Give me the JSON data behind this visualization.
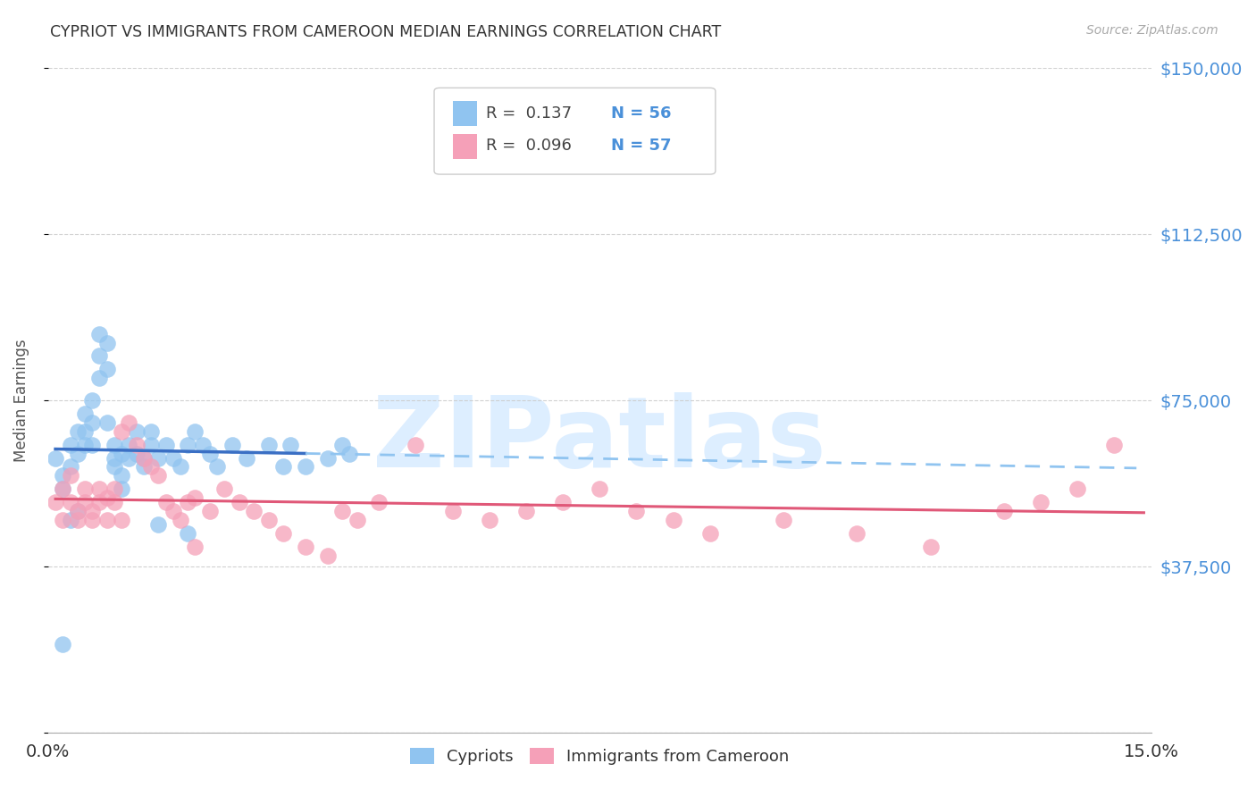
{
  "title": "CYPRIOT VS IMMIGRANTS FROM CAMEROON MEDIAN EARNINGS CORRELATION CHART",
  "source": "Source: ZipAtlas.com",
  "ylabel": "Median Earnings",
  "xlim": [
    0.0,
    0.15
  ],
  "ylim": [
    0,
    150000
  ],
  "yticks": [
    0,
    37500,
    75000,
    112500,
    150000
  ],
  "xticks": [
    0.0,
    0.05,
    0.1,
    0.15
  ],
  "xtick_labels": [
    "0.0%",
    "",
    "",
    "15.0%"
  ],
  "ytick_labels_right": [
    "$37,500",
    "$75,000",
    "$112,500",
    "$150,000"
  ],
  "legend_label1": "Cypriots",
  "legend_label2": "Immigrants from Cameroon",
  "R1": 0.137,
  "N1": 56,
  "R2": 0.096,
  "N2": 57,
  "color_blue": "#90c4f0",
  "color_pink": "#f5a0b8",
  "line_blue_solid": "#3a6fc4",
  "line_blue_dashed": "#90c4f0",
  "line_pink": "#e05878",
  "watermark": "ZIPatlas",
  "watermark_color": "#ddeeff",
  "title_color": "#333333",
  "axis_label_color": "#555555",
  "tick_color_blue": "#4a90d9",
  "background_color": "#ffffff",
  "grid_color": "#cccccc",
  "blue_x": [
    0.001,
    0.002,
    0.002,
    0.003,
    0.003,
    0.004,
    0.004,
    0.005,
    0.005,
    0.005,
    0.006,
    0.006,
    0.006,
    0.007,
    0.007,
    0.007,
    0.008,
    0.008,
    0.008,
    0.009,
    0.009,
    0.009,
    0.01,
    0.01,
    0.01,
    0.011,
    0.011,
    0.012,
    0.012,
    0.013,
    0.013,
    0.014,
    0.014,
    0.015,
    0.016,
    0.017,
    0.018,
    0.019,
    0.02,
    0.021,
    0.022,
    0.023,
    0.025,
    0.027,
    0.03,
    0.032,
    0.033,
    0.035,
    0.038,
    0.04,
    0.041,
    0.003,
    0.004,
    0.002,
    0.015,
    0.019
  ],
  "blue_y": [
    62000,
    58000,
    55000,
    65000,
    60000,
    68000,
    63000,
    72000,
    68000,
    65000,
    75000,
    70000,
    65000,
    85000,
    80000,
    90000,
    88000,
    82000,
    70000,
    65000,
    62000,
    60000,
    63000,
    58000,
    55000,
    62000,
    65000,
    68000,
    63000,
    62000,
    60000,
    65000,
    68000,
    62000,
    65000,
    62000,
    60000,
    65000,
    68000,
    65000,
    63000,
    60000,
    65000,
    62000,
    65000,
    60000,
    65000,
    60000,
    62000,
    65000,
    63000,
    48000,
    50000,
    20000,
    47000,
    45000
  ],
  "pink_x": [
    0.001,
    0.002,
    0.002,
    0.003,
    0.003,
    0.004,
    0.004,
    0.005,
    0.005,
    0.006,
    0.006,
    0.007,
    0.007,
    0.008,
    0.008,
    0.009,
    0.009,
    0.01,
    0.011,
    0.012,
    0.013,
    0.014,
    0.015,
    0.016,
    0.017,
    0.018,
    0.019,
    0.02,
    0.022,
    0.024,
    0.026,
    0.028,
    0.03,
    0.032,
    0.035,
    0.038,
    0.04,
    0.042,
    0.045,
    0.05,
    0.055,
    0.06,
    0.065,
    0.07,
    0.075,
    0.08,
    0.085,
    0.09,
    0.1,
    0.11,
    0.12,
    0.13,
    0.135,
    0.14,
    0.145,
    0.01,
    0.02
  ],
  "pink_y": [
    52000,
    55000,
    48000,
    52000,
    58000,
    50000,
    48000,
    52000,
    55000,
    50000,
    48000,
    52000,
    55000,
    53000,
    48000,
    52000,
    55000,
    68000,
    70000,
    65000,
    62000,
    60000,
    58000,
    52000,
    50000,
    48000,
    52000,
    53000,
    50000,
    55000,
    52000,
    50000,
    48000,
    45000,
    42000,
    40000,
    50000,
    48000,
    52000,
    65000,
    50000,
    48000,
    50000,
    52000,
    55000,
    50000,
    48000,
    45000,
    48000,
    45000,
    42000,
    50000,
    52000,
    55000,
    65000,
    48000,
    42000
  ]
}
